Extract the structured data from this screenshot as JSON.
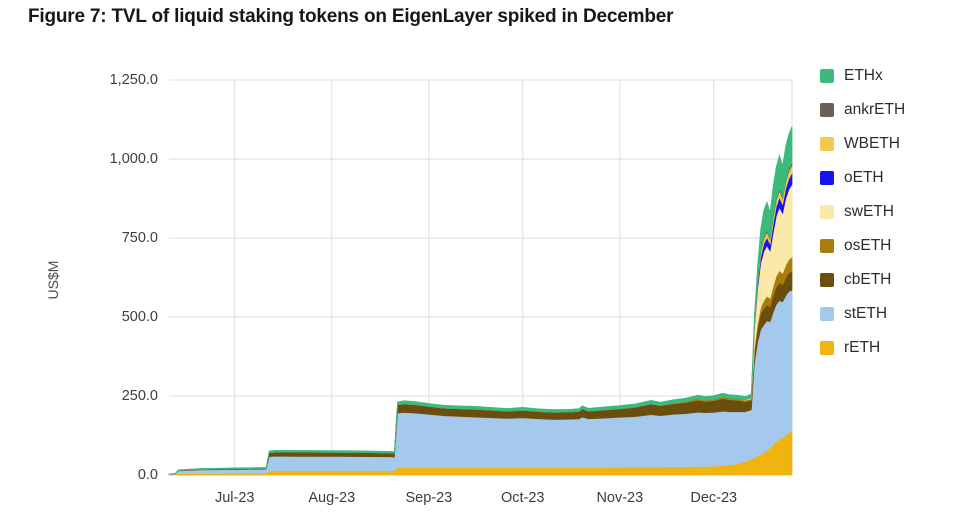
{
  "figure": {
    "title": "Figure 7: TVL of liquid staking tokens on EigenLayer spiked in December"
  },
  "chart_data": {
    "type": "area",
    "stacked": true,
    "title": "Figure 7: TVL of liquid staking tokens on EigenLayer spiked in December",
    "xlabel": "",
    "ylabel": "US$M",
    "ylim": [
      0,
      1250
    ],
    "grid": true,
    "grid_color": "#dedede",
    "axis_text_color": "#3d3d3d",
    "legend_position": "right",
    "legend_order_top_to_bottom": [
      "ETHx",
      "ankrETH",
      "WBETH",
      "oETH",
      "swETH",
      "osETH",
      "cbETH",
      "stETH",
      "rETH"
    ],
    "y_ticks": [
      {
        "value": 0,
        "label": "0.0"
      },
      {
        "value": 250,
        "label": "250.0"
      },
      {
        "value": 500,
        "label": "500.0"
      },
      {
        "value": 750,
        "label": "750.0"
      },
      {
        "value": 1000,
        "label": "1,000.0"
      },
      {
        "value": 1250,
        "label": "1,250.0"
      }
    ],
    "x_unit": "days from plot start (~mid-Jun-2023) to plot end (~late-Dec-2023)",
    "x_domain_days": [
      0,
      199
    ],
    "x_ticks": [
      {
        "day": 21,
        "label": "Jul-23"
      },
      {
        "day": 52,
        "label": "Aug-23"
      },
      {
        "day": 83,
        "label": "Sep-23"
      },
      {
        "day": 113,
        "label": "Oct-23"
      },
      {
        "day": 144,
        "label": "Nov-23"
      },
      {
        "day": 174,
        "label": "Dec-23"
      }
    ],
    "x_days": [
      0,
      2,
      3,
      6,
      10,
      15,
      21,
      26,
      31,
      32,
      34,
      40,
      46,
      52,
      58,
      64,
      70,
      72,
      73,
      75,
      79,
      83,
      88,
      93,
      98,
      103,
      108,
      113,
      118,
      123,
      128,
      131,
      132,
      134,
      139,
      144,
      149,
      154,
      157,
      161,
      165,
      169,
      171,
      174,
      177,
      179,
      182,
      184,
      186,
      187,
      188,
      189,
      190,
      191,
      192,
      193,
      194,
      195,
      196,
      197,
      198,
      199
    ],
    "series_stack_order": "bottom_to_top",
    "series": [
      {
        "name": "rETH",
        "color": "#efb40e",
        "values": [
          1.5,
          2,
          4,
          4.5,
          5,
          5,
          5.5,
          5.5,
          5.5,
          13,
          13.5,
          13.5,
          14,
          14,
          14,
          14,
          14,
          14,
          24,
          24,
          24,
          24,
          23.5,
          23.5,
          23,
          23,
          23,
          23,
          23,
          23.5,
          23.5,
          23.5,
          23.5,
          24,
          24,
          24.5,
          25,
          25,
          25,
          26,
          26,
          27,
          27,
          28,
          30,
          32,
          36,
          42,
          50,
          55,
          60,
          65,
          70,
          78,
          85,
          95,
          105,
          112,
          118,
          125,
          133,
          140
        ]
      },
      {
        "name": "stETH",
        "color": "#a5c9ec",
        "values": [
          1,
          2,
          9,
          10,
          11,
          11.5,
          12,
          12.5,
          13,
          45,
          46,
          45.5,
          45,
          45,
          44.5,
          44,
          43.5,
          43,
          172,
          174,
          172,
          168,
          164,
          162,
          160,
          158,
          156,
          158,
          155,
          152,
          153,
          154,
          160,
          154,
          156,
          158,
          160,
          166,
          163,
          166,
          168,
          172,
          170,
          170,
          172,
          168,
          164,
          158,
          156,
          300,
          360,
          395,
          405,
          410,
          400,
          420,
          435,
          440,
          430,
          442,
          448,
          445
        ]
      },
      {
        "name": "cbETH",
        "color": "#6b4e0e",
        "values": [
          0.2,
          0.3,
          1.5,
          1.8,
          2,
          2.2,
          2.3,
          2.4,
          2.5,
          13,
          13,
          13,
          13,
          12.8,
          12.8,
          12.5,
          12.3,
          12,
          26,
          27,
          26,
          25,
          24,
          24,
          25,
          24,
          23,
          24,
          23,
          23,
          23,
          24,
          26,
          24,
          26,
          27,
          30,
          34,
          32,
          33,
          35,
          38,
          36,
          37,
          40,
          38,
          36,
          32,
          30,
          38,
          45,
          50,
          52,
          50,
          48,
          52,
          55,
          57,
          54,
          57,
          58,
          60
        ]
      },
      {
        "name": "osETH",
        "color": "#a87d0c",
        "values": [
          0,
          0,
          0,
          0,
          0,
          0,
          0,
          0,
          0,
          0,
          0,
          0,
          0,
          0,
          0,
          0,
          0,
          0,
          0,
          0,
          0,
          0,
          0,
          0,
          0,
          0,
          0,
          0,
          0,
          0,
          0,
          0,
          0,
          0,
          0,
          0,
          0,
          0,
          0,
          2,
          3,
          4,
          4,
          4,
          5,
          5,
          5,
          5,
          5,
          10,
          15,
          20,
          25,
          28,
          26,
          30,
          35,
          38,
          36,
          40,
          43,
          45
        ]
      },
      {
        "name": "swETH",
        "color": "#fbe9a9",
        "values": [
          0,
          0,
          0,
          0,
          0,
          0,
          0,
          0,
          0,
          0,
          0,
          0,
          0,
          0,
          0,
          0,
          0,
          0,
          0,
          0,
          0,
          0,
          0,
          0,
          0,
          0,
          0,
          0,
          0,
          0,
          0,
          0,
          0,
          0,
          0,
          0,
          0,
          0,
          0,
          0,
          0,
          0,
          0,
          0,
          0,
          0,
          0,
          1,
          3,
          60,
          110,
          140,
          155,
          160,
          150,
          170,
          190,
          200,
          190,
          210,
          222,
          230
        ]
      },
      {
        "name": "oETH",
        "color": "#1414f0",
        "values": [
          0,
          0,
          0,
          0,
          0,
          0,
          0,
          0,
          0,
          0,
          0,
          0,
          0,
          0,
          0,
          0,
          0,
          0,
          0,
          0,
          0,
          0,
          0,
          0,
          0,
          0,
          0,
          0,
          0,
          0,
          0,
          0,
          0,
          0,
          0,
          0,
          0,
          0,
          0,
          0,
          0,
          0,
          0,
          0,
          0,
          0,
          0,
          0,
          1,
          8,
          15,
          20,
          24,
          26,
          22,
          28,
          30,
          32,
          28,
          32,
          34,
          35
        ]
      },
      {
        "name": "WBETH",
        "color": "#f2c94c",
        "values": [
          0,
          0,
          0,
          0,
          0,
          0,
          0,
          0,
          0,
          0,
          0,
          0,
          0,
          0,
          0,
          0,
          0,
          0,
          0,
          0,
          0,
          0,
          0,
          0,
          0,
          0,
          0,
          0,
          0,
          0,
          0,
          0,
          0,
          0,
          0,
          0,
          0,
          0,
          0,
          0,
          0,
          0,
          0,
          0,
          0,
          0,
          0,
          0,
          1,
          5,
          10,
          14,
          16,
          17,
          15,
          18,
          20,
          21,
          19,
          22,
          24,
          25
        ]
      },
      {
        "name": "ankrETH",
        "color": "#6a6054",
        "values": [
          0,
          0,
          0,
          0,
          0,
          0,
          0,
          0,
          0,
          0,
          0,
          0,
          0,
          0,
          0,
          0,
          0,
          0,
          0,
          0,
          0,
          0,
          0,
          0,
          0,
          0,
          0,
          0,
          0,
          0,
          0,
          0,
          0,
          0,
          0,
          0,
          0,
          0,
          0,
          0,
          0,
          0,
          0,
          0,
          0,
          0,
          0,
          0,
          0,
          2,
          3,
          4,
          5,
          5,
          5,
          6,
          6,
          7,
          6,
          7,
          7,
          8
        ]
      },
      {
        "name": "ETHx",
        "color": "#3cba7c",
        "values": [
          0.5,
          0.8,
          2,
          2.2,
          2.5,
          2.5,
          2.7,
          2.8,
          3,
          5,
          5.5,
          5.5,
          5.5,
          5.5,
          5.5,
          5.5,
          5.2,
          5,
          9,
          10,
          10,
          9,
          9,
          9,
          9,
          8.5,
          8.5,
          9,
          8.5,
          8.5,
          8.5,
          8.5,
          9.5,
          9,
          9.5,
          10,
          10,
          11,
          10.5,
          11,
          11,
          12,
          11.5,
          12,
          12,
          11,
          11,
          10,
          10,
          25,
          45,
          70,
          85,
          90,
          80,
          95,
          100,
          105,
          98,
          105,
          110,
          115
        ]
      }
    ]
  }
}
